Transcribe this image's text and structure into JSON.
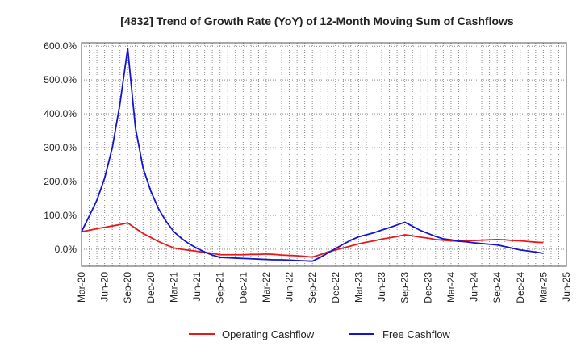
{
  "chart_data": {
    "type": "line",
    "title": "[4832]  Trend of Growth Rate (YoY) of 12-Month Moving Sum of Cashflows",
    "xlabel": "",
    "ylabel": "",
    "x_ticks": [
      "Mar-20",
      "Jun-20",
      "Sep-20",
      "Dec-20",
      "Mar-21",
      "Jun-21",
      "Sep-21",
      "Dec-21",
      "Mar-22",
      "Jun-22",
      "Sep-22",
      "Dec-22",
      "Mar-23",
      "Jun-23",
      "Sep-23",
      "Dec-23",
      "Mar-24",
      "Jun-24",
      "Sep-24",
      "Dec-24",
      "Mar-25",
      "Jun-25"
    ],
    "y_ticks": [
      "0.0%",
      "100.0%",
      "200.0%",
      "300.0%",
      "400.0%",
      "500.0%",
      "600.0%"
    ],
    "y_tick_values": [
      0,
      100,
      200,
      300,
      400,
      500,
      600
    ],
    "ylim": [
      -50,
      610
    ],
    "grid": true,
    "legend_position": "bottom",
    "x": [
      "2020-03",
      "2020-04",
      "2020-05",
      "2020-06",
      "2020-07",
      "2020-08",
      "2020-09",
      "2020-10",
      "2020-11",
      "2020-12",
      "2021-01",
      "2021-02",
      "2021-03",
      "2021-04",
      "2021-05",
      "2021-06",
      "2021-07",
      "2021-08",
      "2021-09",
      "2021-10",
      "2021-11",
      "2021-12",
      "2022-01",
      "2022-02",
      "2022-03",
      "2022-04",
      "2022-05",
      "2022-06",
      "2022-07",
      "2022-08",
      "2022-09",
      "2022-10",
      "2022-11",
      "2022-12",
      "2023-01",
      "2023-02",
      "2023-03",
      "2023-04",
      "2023-05",
      "2023-06",
      "2023-07",
      "2023-08",
      "2023-09",
      "2023-10",
      "2023-11",
      "2023-12",
      "2024-01",
      "2024-02",
      "2024-03",
      "2024-04",
      "2024-05",
      "2024-06",
      "2024-07",
      "2024-08",
      "2024-09",
      "2024-10",
      "2024-11",
      "2024-12",
      "2025-01",
      "2025-02",
      "2025-03"
    ],
    "series": [
      {
        "name": "Operating Cashflow",
        "color": "#e8191b",
        "values": [
          52,
          56,
          61,
          65,
          69,
          73,
          78,
          62,
          47,
          35,
          23,
          13,
          4,
          0,
          -3,
          -6,
          -9,
          -12,
          -16,
          -16,
          -16,
          -16,
          -15,
          -15,
          -14,
          -15,
          -17,
          -18,
          -19,
          -21,
          -23,
          -16,
          -8,
          -2,
          4,
          10,
          16,
          21,
          25,
          30,
          34,
          38,
          43,
          40,
          36,
          33,
          29,
          27,
          25,
          24,
          25,
          26,
          27,
          28,
          29,
          28,
          26,
          25,
          23,
          21,
          20
        ],
        "values_note_removed": true
      },
      {
        "name": "Free Cashflow",
        "color": "#1414d2",
        "values": [
          52,
          98,
          145,
          210,
          300,
          430,
          593,
          360,
          240,
          172,
          120,
          82,
          52,
          32,
          16,
          3,
          -8,
          -17,
          -24,
          -25,
          -26,
          -27,
          -28,
          -29,
          -30,
          -31,
          -31,
          -32,
          -33,
          -34,
          -35,
          -24,
          -11,
          2,
          15,
          27,
          37,
          43,
          49,
          57,
          64,
          72,
          80,
          68,
          56,
          47,
          38,
          31,
          28,
          24,
          22,
          19,
          17,
          15,
          13,
          8,
          3,
          -2,
          -5,
          -8,
          -12
        ]
      }
    ]
  }
}
